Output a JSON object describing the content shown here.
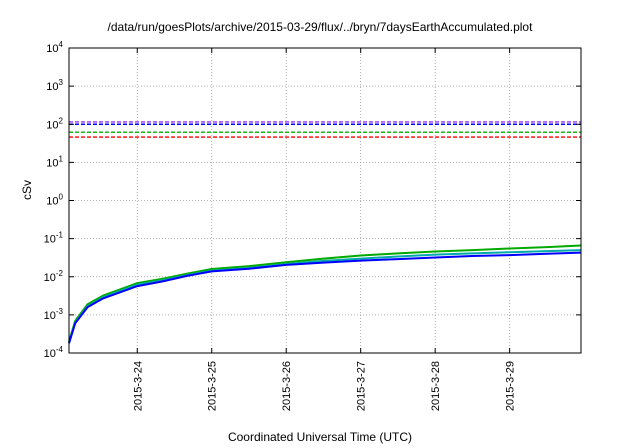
{
  "chart_data": {
    "type": "line",
    "title": "/data/run/goesPlots/archive/2015-03-29/flux/../bryn/7daysEarthAccumulated.plot",
    "xlabel": "Coordinated Universal Time (UTC)",
    "ylabel": "cSv",
    "x_ticks": [
      "2015-3-24",
      "2015-3-25",
      "2015-3-26",
      "2015-3-27",
      "2015-3-28",
      "2015-3-29"
    ],
    "xlim": [
      "2015-03-23 02:00",
      "2015-03-29 23:00"
    ],
    "yscale": "log",
    "ylim": [
      0.0001,
      10000
    ],
    "y_ticks": [
      {
        "value": 0.0001,
        "base": "10",
        "exp": "-4"
      },
      {
        "value": 0.001,
        "base": "10",
        "exp": "-3"
      },
      {
        "value": 0.01,
        "base": "10",
        "exp": "-2"
      },
      {
        "value": 0.1,
        "base": "10",
        "exp": "-1"
      },
      {
        "value": 1,
        "base": "10",
        "exp": "0"
      },
      {
        "value": 10,
        "base": "10",
        "exp": "1"
      },
      {
        "value": 100,
        "base": "10",
        "exp": "2"
      },
      {
        "value": 1000,
        "base": "10",
        "exp": "3"
      },
      {
        "value": 10000,
        "base": "10",
        "exp": "4"
      }
    ],
    "grid": true,
    "thresholds": [
      {
        "value": 115,
        "color": "#9b30ff",
        "style": "dashed"
      },
      {
        "value": 100,
        "color": "#0000ff",
        "style": "dashed"
      },
      {
        "value": 62,
        "color": "#00b000",
        "style": "dashed"
      },
      {
        "value": 46,
        "color": "#ff0000",
        "style": "dashed"
      }
    ],
    "series": [
      {
        "color": "#00aa00",
        "x": [
          "2015-03-23 02:00",
          "2015-03-23 04:00",
          "2015-03-23 08:00",
          "2015-03-23 13:00",
          "2015-03-23 18:00",
          "2015-03-24 00:00",
          "2015-03-24 08:00",
          "2015-03-24 16:00",
          "2015-03-25 00:00",
          "2015-03-25 12:00",
          "2015-03-26 00:00",
          "2015-03-26 12:00",
          "2015-03-27 00:00",
          "2015-03-27 12:00",
          "2015-03-28 00:00",
          "2015-03-28 12:00",
          "2015-03-29 00:00",
          "2015-03-29 12:00",
          "2015-03-29 23:00"
        ],
        "y": [
          0.0002,
          0.0007,
          0.0019,
          0.0032,
          0.0045,
          0.0068,
          0.0088,
          0.012,
          0.016,
          0.019,
          0.024,
          0.03,
          0.036,
          0.041,
          0.046,
          0.05,
          0.055,
          0.06,
          0.066
        ]
      },
      {
        "color": "#00aaaa",
        "x": [
          "2015-03-23 02:00",
          "2015-03-23 04:00",
          "2015-03-23 08:00",
          "2015-03-23 13:00",
          "2015-03-23 18:00",
          "2015-03-24 00:00",
          "2015-03-24 08:00",
          "2015-03-24 16:00",
          "2015-03-25 00:00",
          "2015-03-25 12:00",
          "2015-03-26 00:00",
          "2015-03-26 12:00",
          "2015-03-27 00:00",
          "2015-03-27 12:00",
          "2015-03-28 00:00",
          "2015-03-28 12:00",
          "2015-03-29 00:00",
          "2015-03-29 12:00",
          "2015-03-29 23:00"
        ],
        "y": [
          0.00019,
          0.00063,
          0.0017,
          0.0029,
          0.0041,
          0.0062,
          0.008,
          0.011,
          0.0145,
          0.017,
          0.0215,
          0.026,
          0.03,
          0.034,
          0.038,
          0.041,
          0.044,
          0.047,
          0.05
        ]
      },
      {
        "color": "#0000ff",
        "x": [
          "2015-03-23 02:00",
          "2015-03-23 04:00",
          "2015-03-23 08:00",
          "2015-03-23 13:00",
          "2015-03-23 18:00",
          "2015-03-24 00:00",
          "2015-03-24 08:00",
          "2015-03-24 16:00",
          "2015-03-25 00:00",
          "2015-03-25 12:00",
          "2015-03-26 00:00",
          "2015-03-26 12:00",
          "2015-03-27 00:00",
          "2015-03-27 12:00",
          "2015-03-28 00:00",
          "2015-03-28 12:00",
          "2015-03-29 00:00",
          "2015-03-29 12:00",
          "2015-03-29 23:00"
        ],
        "y": [
          0.00018,
          0.0006,
          0.0016,
          0.0027,
          0.0038,
          0.0057,
          0.0075,
          0.0105,
          0.0138,
          0.0163,
          0.0205,
          0.0235,
          0.0265,
          0.029,
          0.032,
          0.035,
          0.037,
          0.04,
          0.043
        ]
      }
    ]
  }
}
